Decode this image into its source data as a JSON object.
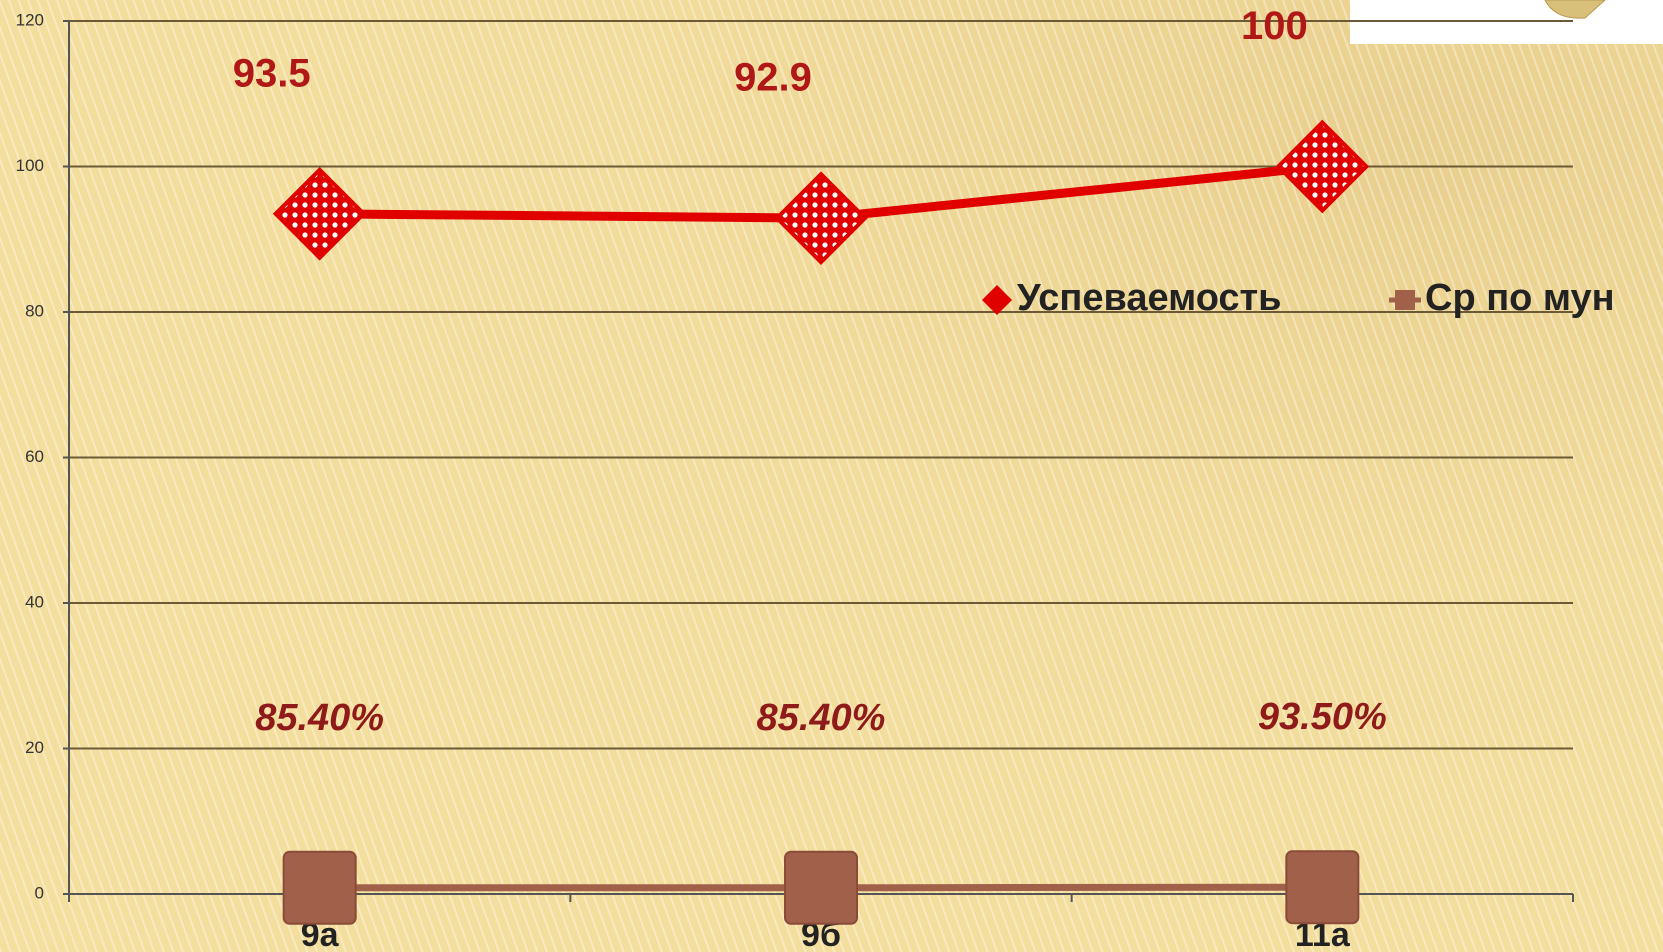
{
  "chart_data": {
    "type": "line",
    "categories": [
      "9а",
      "9б",
      "11а"
    ],
    "series": [
      {
        "name": "Успеваемость",
        "color": "#e00000",
        "values": [
          93.5,
          92.9,
          100
        ]
      },
      {
        "name": "Ср по мун",
        "color": "#a0604a",
        "values": [
          0.854,
          0.854,
          0.935
        ],
        "value_labels": [
          "85.40%",
          "85.40%",
          "93.50%"
        ]
      }
    ],
    "ylim": [
      0,
      120
    ],
    "yticks": [
      0,
      20,
      40,
      60,
      80,
      100,
      120
    ],
    "grid": true
  }
}
